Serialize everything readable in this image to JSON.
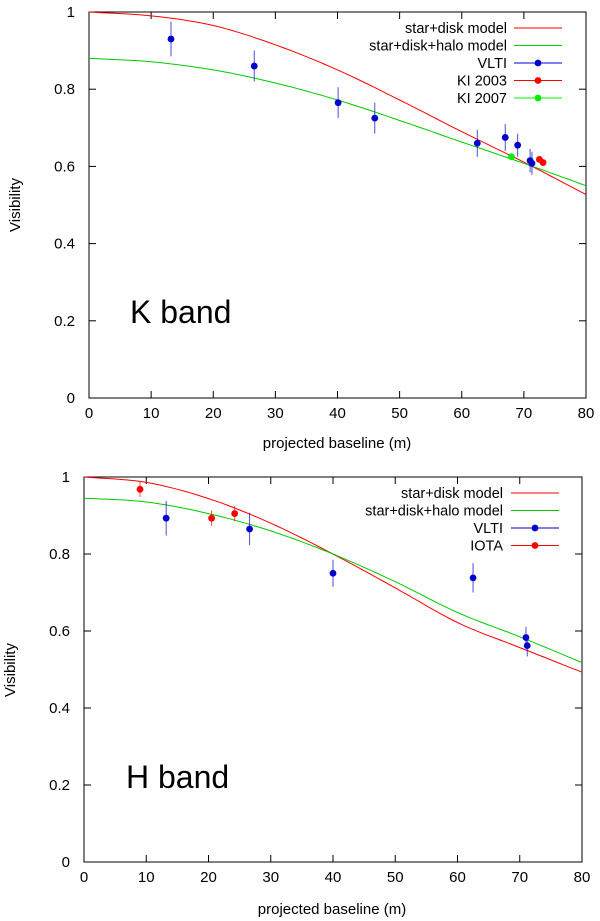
{
  "chart_data": [
    {
      "type": "scatter",
      "title": "",
      "annotation": "K band",
      "xlabel": "projected baseline (m)",
      "ylabel": "Visibility",
      "xlim": [
        0,
        80
      ],
      "ylim": [
        0,
        1
      ],
      "xticks": [
        "0",
        "10",
        "20",
        "30",
        "40",
        "50",
        "60",
        "70",
        "80"
      ],
      "yticks": [
        "0",
        "0.2",
        "0.4",
        "0.6",
        "0.8",
        "1"
      ],
      "legend_position": "top-right",
      "models": [
        {
          "name": "star+disk model",
          "color": "#ff0000",
          "x": [
            0,
            10,
            20,
            30,
            40,
            50,
            60,
            70,
            80
          ],
          "y": [
            1.0,
            0.99,
            0.965,
            0.915,
            0.85,
            0.772,
            0.69,
            0.611,
            0.527
          ]
        },
        {
          "name": "star+disk+halo model",
          "color": "#00cc00",
          "x": [
            0,
            10,
            20,
            30,
            40,
            50,
            60,
            70,
            80
          ],
          "y": [
            0.88,
            0.871,
            0.85,
            0.816,
            0.772,
            0.719,
            0.663,
            0.608,
            0.55
          ]
        }
      ],
      "series": [
        {
          "name": "VLTI",
          "color": "#0000cc",
          "x": [
            13.2,
            26.6,
            40.1,
            46.0,
            62.5,
            67.0,
            69.0,
            71.0,
            71.3
          ],
          "y": [
            0.93,
            0.86,
            0.765,
            0.725,
            0.66,
            0.675,
            0.655,
            0.615,
            0.608
          ],
          "err": [
            0.045,
            0.04,
            0.04,
            0.04,
            0.035,
            0.035,
            0.03,
            0.03,
            0.03
          ]
        },
        {
          "name": "KI 2003",
          "color": "#ff0000",
          "x": [
            72.5,
            73.1
          ],
          "y": [
            0.618,
            0.61
          ],
          "err": [
            0.0,
            0.0
          ]
        },
        {
          "name": "KI 2007",
          "color": "#00ee00",
          "x": [
            68.0
          ],
          "y": [
            0.625
          ],
          "err": [
            0.0
          ]
        }
      ]
    },
    {
      "type": "scatter",
      "title": "",
      "annotation": "H band",
      "xlabel": "projected baseline (m)",
      "ylabel": "Visibility",
      "xlim": [
        0,
        80
      ],
      "ylim": [
        0,
        1
      ],
      "xticks": [
        "0",
        "10",
        "20",
        "30",
        "40",
        "50",
        "60",
        "70",
        "80"
      ],
      "yticks": [
        "0",
        "0.2",
        "0.4",
        "0.6",
        "0.8",
        "1"
      ],
      "legend_position": "top-right",
      "models": [
        {
          "name": "star+disk model",
          "color": "#ff0000",
          "x": [
            0,
            10,
            20,
            30,
            40,
            50,
            60,
            70,
            80
          ],
          "y": [
            1.0,
            0.986,
            0.944,
            0.88,
            0.8,
            0.712,
            0.622,
            0.557,
            0.493
          ]
        },
        {
          "name": "star+disk+halo model",
          "color": "#00cc00",
          "x": [
            0,
            10,
            20,
            30,
            40,
            50,
            60,
            70,
            80
          ],
          "y": [
            0.945,
            0.935,
            0.905,
            0.86,
            0.8,
            0.728,
            0.648,
            0.585,
            0.518
          ]
        }
      ],
      "series": [
        {
          "name": "VLTI",
          "color": "#0000cc",
          "x": [
            13.2,
            26.6,
            40.0,
            62.5,
            71.0,
            71.2
          ],
          "y": [
            0.893,
            0.865,
            0.75,
            0.738,
            0.583,
            0.562
          ],
          "err": [
            0.045,
            0.042,
            0.035,
            0.038,
            0.028,
            0.028
          ]
        },
        {
          "name": "IOTA",
          "color": "#ff0000",
          "x": [
            9.0,
            20.5,
            24.2
          ],
          "y": [
            0.968,
            0.893,
            0.905
          ],
          "err": [
            0.02,
            0.02,
            0.02
          ]
        }
      ]
    }
  ]
}
